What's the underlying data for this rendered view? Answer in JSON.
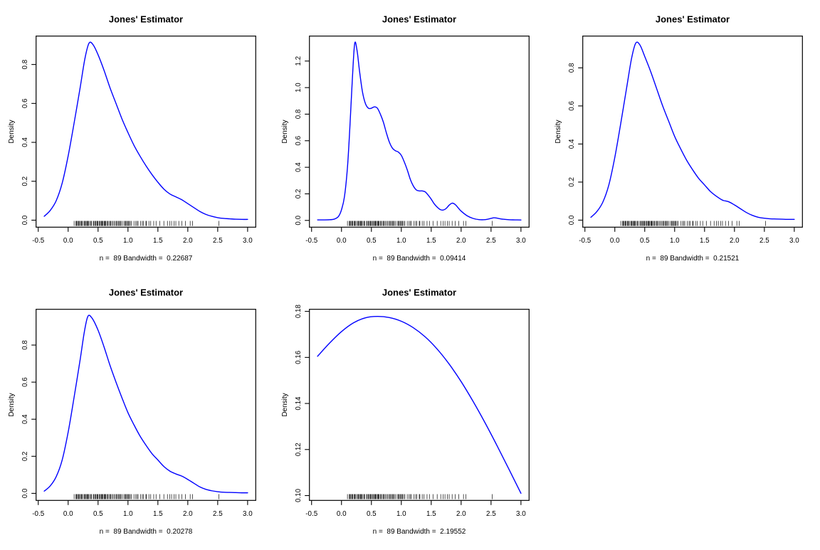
{
  "figure": {
    "background": "#ffffff",
    "curve_color": "#0000ff",
    "axis_color": "#000000",
    "text_color": "#000000",
    "rows": 2,
    "cols": 3
  },
  "rug_points": [
    0.1,
    0.13,
    0.14,
    0.15,
    0.17,
    0.18,
    0.19,
    0.21,
    0.22,
    0.23,
    0.25,
    0.27,
    0.28,
    0.29,
    0.31,
    0.32,
    0.33,
    0.34,
    0.36,
    0.38,
    0.39,
    0.42,
    0.43,
    0.45,
    0.46,
    0.48,
    0.49,
    0.5,
    0.52,
    0.53,
    0.55,
    0.56,
    0.57,
    0.58,
    0.6,
    0.61,
    0.62,
    0.63,
    0.65,
    0.66,
    0.68,
    0.7,
    0.71,
    0.73,
    0.75,
    0.77,
    0.79,
    0.81,
    0.82,
    0.84,
    0.85,
    0.87,
    0.88,
    0.9,
    0.93,
    0.95,
    0.96,
    0.98,
    0.99,
    1.01,
    1.02,
    1.04,
    1.06,
    1.1,
    1.13,
    1.15,
    1.17,
    1.21,
    1.24,
    1.26,
    1.3,
    1.31,
    1.35,
    1.38,
    1.43,
    1.47,
    1.53,
    1.6,
    1.66,
    1.7,
    1.73,
    1.77,
    1.8,
    1.85,
    1.9,
    1.96,
    2.04,
    2.08,
    2.52
  ],
  "chart_data": [
    {
      "type": "line",
      "title": "Jones' Estimator",
      "subtitle": "n =  89 Bandwidth =  0.22687",
      "ylabel": "Density",
      "n": 89,
      "bandwidth": 0.22687,
      "xlim": [
        -0.536,
        3.136
      ],
      "ylim": [
        -0.036,
        0.946
      ],
      "xticks": [
        -0.5,
        0.0,
        0.5,
        1.0,
        1.5,
        2.0,
        2.5,
        3.0
      ],
      "xtick_labels": [
        "-0.5",
        "0.0",
        "0.5",
        "1.0",
        "1.5",
        "2.0",
        "2.5",
        "3.0"
      ],
      "yticks": [
        0.0,
        0.2,
        0.4,
        0.6,
        0.8
      ],
      "ytick_labels": [
        "0.0",
        "0.2",
        "0.4",
        "0.6",
        "0.8"
      ],
      "rug": true,
      "curve": {
        "x": [
          -0.4,
          -0.3,
          -0.2,
          -0.1,
          0.0,
          0.1,
          0.2,
          0.28,
          0.35,
          0.42,
          0.5,
          0.6,
          0.7,
          0.8,
          0.9,
          1.0,
          1.1,
          1.2,
          1.3,
          1.4,
          1.5,
          1.6,
          1.7,
          1.8,
          1.9,
          2.0,
          2.1,
          2.2,
          2.3,
          2.4,
          2.5,
          2.6,
          2.7,
          2.8,
          2.9,
          3.0
        ],
        "y": [
          0.02,
          0.05,
          0.1,
          0.19,
          0.33,
          0.5,
          0.68,
          0.83,
          0.91,
          0.9,
          0.85,
          0.77,
          0.68,
          0.6,
          0.52,
          0.45,
          0.385,
          0.33,
          0.28,
          0.235,
          0.195,
          0.16,
          0.135,
          0.12,
          0.105,
          0.085,
          0.065,
          0.045,
          0.03,
          0.02,
          0.013,
          0.009,
          0.007,
          0.005,
          0.004,
          0.004
        ]
      }
    },
    {
      "type": "line",
      "title": "Jones' Estimator",
      "subtitle": "n =  89 Bandwidth =  0.09414",
      "ylabel": "Density",
      "n": 89,
      "bandwidth": 0.09414,
      "xlim": [
        -0.536,
        3.136
      ],
      "ylim": [
        -0.051,
        1.388
      ],
      "xticks": [
        -0.5,
        0.0,
        0.5,
        1.0,
        1.5,
        2.0,
        2.5,
        3.0
      ],
      "xtick_labels": [
        "-0.5",
        "0.0",
        "0.5",
        "1.0",
        "1.5",
        "2.0",
        "2.5",
        "3.0"
      ],
      "yticks": [
        0.0,
        0.2,
        0.4,
        0.6,
        0.8,
        1.0,
        1.2
      ],
      "ytick_labels": [
        "0.0",
        "0.2",
        "0.4",
        "0.6",
        "0.8",
        "1.0",
        "1.2"
      ],
      "rug": true,
      "curve": {
        "x": [
          -0.4,
          -0.3,
          -0.2,
          -0.12,
          -0.05,
          0.0,
          0.05,
          0.1,
          0.14,
          0.18,
          0.22,
          0.26,
          0.3,
          0.35,
          0.4,
          0.45,
          0.5,
          0.55,
          0.6,
          0.65,
          0.7,
          0.75,
          0.8,
          0.85,
          0.9,
          0.95,
          1.0,
          1.05,
          1.1,
          1.15,
          1.2,
          1.25,
          1.3,
          1.35,
          1.4,
          1.45,
          1.5,
          1.55,
          1.6,
          1.65,
          1.7,
          1.75,
          1.8,
          1.85,
          1.9,
          1.95,
          2.0,
          2.1,
          2.2,
          2.3,
          2.4,
          2.5,
          2.55,
          2.6,
          2.7,
          2.8,
          2.9,
          3.0
        ],
        "y": [
          0.004,
          0.004,
          0.005,
          0.01,
          0.03,
          0.08,
          0.18,
          0.4,
          0.7,
          1.05,
          1.33,
          1.28,
          1.13,
          0.97,
          0.88,
          0.845,
          0.845,
          0.855,
          0.845,
          0.8,
          0.74,
          0.66,
          0.59,
          0.545,
          0.525,
          0.515,
          0.49,
          0.44,
          0.38,
          0.31,
          0.26,
          0.23,
          0.222,
          0.222,
          0.215,
          0.19,
          0.16,
          0.125,
          0.1,
          0.082,
          0.078,
          0.09,
          0.115,
          0.13,
          0.12,
          0.095,
          0.07,
          0.035,
          0.015,
          0.006,
          0.006,
          0.015,
          0.02,
          0.017,
          0.009,
          0.005,
          0.004,
          0.003
        ]
      }
    },
    {
      "type": "line",
      "title": "Jones' Estimator",
      "subtitle": "n =  89 Bandwidth =  0.21521",
      "ylabel": "Density",
      "n": 89,
      "bandwidth": 0.21521,
      "xlim": [
        -0.536,
        3.136
      ],
      "ylim": [
        -0.037,
        0.967
      ],
      "xticks": [
        -0.5,
        0.0,
        0.5,
        1.0,
        1.5,
        2.0,
        2.5,
        3.0
      ],
      "xtick_labels": [
        "-0.5",
        "0.0",
        "0.5",
        "1.0",
        "1.5",
        "2.0",
        "2.5",
        "3.0"
      ],
      "yticks": [
        0.0,
        0.2,
        0.4,
        0.6,
        0.8
      ],
      "ytick_labels": [
        "0.0",
        "0.2",
        "0.4",
        "0.6",
        "0.8"
      ],
      "rug": true,
      "curve": {
        "x": [
          -0.4,
          -0.3,
          -0.2,
          -0.1,
          0.0,
          0.1,
          0.2,
          0.28,
          0.35,
          0.42,
          0.5,
          0.6,
          0.7,
          0.8,
          0.9,
          1.0,
          1.1,
          1.2,
          1.3,
          1.4,
          1.5,
          1.6,
          1.7,
          1.8,
          1.9,
          2.0,
          2.1,
          2.2,
          2.3,
          2.4,
          2.5,
          2.6,
          2.7,
          2.8,
          2.9,
          3.0
        ],
        "y": [
          0.015,
          0.045,
          0.095,
          0.185,
          0.33,
          0.51,
          0.7,
          0.85,
          0.93,
          0.92,
          0.86,
          0.78,
          0.69,
          0.6,
          0.52,
          0.44,
          0.375,
          0.315,
          0.265,
          0.22,
          0.185,
          0.15,
          0.125,
          0.105,
          0.097,
          0.08,
          0.06,
          0.04,
          0.025,
          0.015,
          0.01,
          0.007,
          0.006,
          0.005,
          0.004,
          0.004
        ]
      }
    },
    {
      "type": "line",
      "title": "Jones' Estimator",
      "subtitle": "n =  89 Bandwidth =  0.20278",
      "ylabel": "Density",
      "n": 89,
      "bandwidth": 0.20278,
      "xlim": [
        -0.536,
        3.136
      ],
      "ylim": [
        -0.038,
        0.993
      ],
      "xticks": [
        -0.5,
        0.0,
        0.5,
        1.0,
        1.5,
        2.0,
        2.5,
        3.0
      ],
      "xtick_labels": [
        "-0.5",
        "0.0",
        "0.5",
        "1.0",
        "1.5",
        "2.0",
        "2.5",
        "3.0"
      ],
      "yticks": [
        0.0,
        0.2,
        0.4,
        0.6,
        0.8
      ],
      "ytick_labels": [
        "0.0",
        "0.2",
        "0.4",
        "0.6",
        "0.8"
      ],
      "rug": true,
      "curve": {
        "x": [
          -0.4,
          -0.3,
          -0.2,
          -0.1,
          0.0,
          0.1,
          0.2,
          0.27,
          0.33,
          0.4,
          0.5,
          0.6,
          0.7,
          0.8,
          0.9,
          1.0,
          1.1,
          1.2,
          1.3,
          1.4,
          1.5,
          1.6,
          1.7,
          1.8,
          1.9,
          2.0,
          2.1,
          2.2,
          2.3,
          2.4,
          2.5,
          2.6,
          2.7,
          2.8,
          2.9,
          3.0
        ],
        "y": [
          0.012,
          0.04,
          0.09,
          0.18,
          0.33,
          0.52,
          0.72,
          0.87,
          0.955,
          0.945,
          0.88,
          0.79,
          0.69,
          0.6,
          0.515,
          0.435,
          0.37,
          0.31,
          0.26,
          0.215,
          0.18,
          0.145,
          0.12,
          0.105,
          0.093,
          0.075,
          0.055,
          0.035,
          0.022,
          0.014,
          0.009,
          0.006,
          0.005,
          0.004,
          0.003,
          0.003
        ]
      }
    },
    {
      "type": "line",
      "title": "Jones' Estimator",
      "subtitle": "n =  89 Bandwidth =  2.19552",
      "ylabel": "Density",
      "n": 89,
      "bandwidth": 2.19552,
      "xlim": [
        -0.536,
        3.136
      ],
      "ylim": [
        0.0979,
        0.1809
      ],
      "xticks": [
        -0.5,
        0.0,
        0.5,
        1.0,
        1.5,
        2.0,
        2.5,
        3.0
      ],
      "xtick_labels": [
        "-0.5",
        "0.0",
        "0.5",
        "1.0",
        "1.5",
        "2.0",
        "2.5",
        "3.0"
      ],
      "yticks": [
        0.1,
        0.12,
        0.14,
        0.16,
        0.18
      ],
      "ytick_labels": [
        "0.10",
        "0.12",
        "0.14",
        "0.16",
        "0.18"
      ],
      "rug": true,
      "curve": {
        "x": [
          -0.4,
          -0.2,
          0.0,
          0.2,
          0.4,
          0.6,
          0.8,
          1.0,
          1.2,
          1.4,
          1.6,
          1.8,
          2.0,
          2.2,
          2.4,
          2.6,
          2.8,
          3.0
        ],
        "y": [
          0.1605,
          0.1662,
          0.1712,
          0.175,
          0.1772,
          0.1778,
          0.1773,
          0.1757,
          0.1729,
          0.1689,
          0.1636,
          0.1571,
          0.1495,
          0.1409,
          0.1316,
          0.1217,
          0.1114,
          0.101
        ]
      }
    }
  ]
}
